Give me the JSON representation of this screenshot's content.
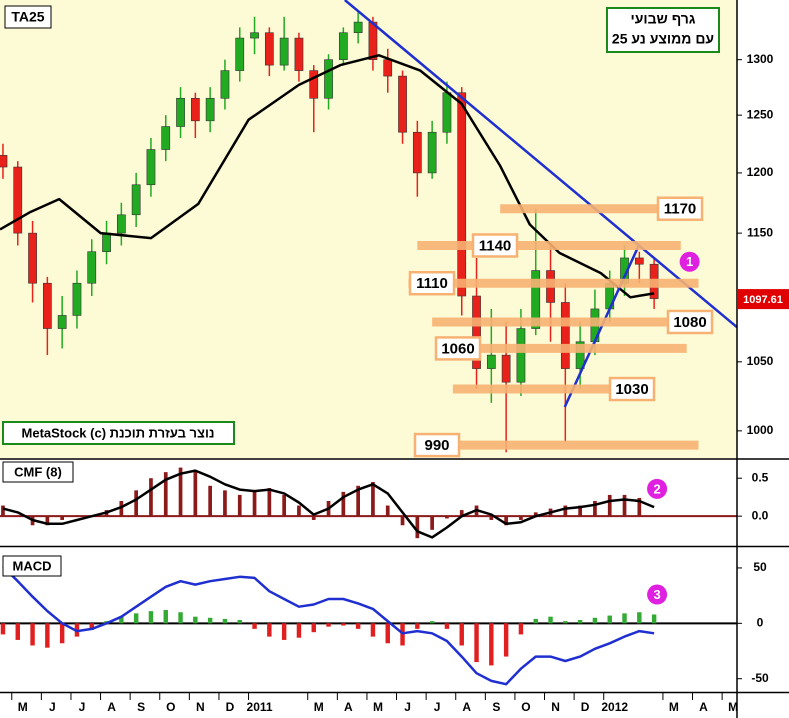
{
  "chart_data": [
    {
      "type": "candlestick",
      "title": "TA25",
      "note": [
        "גרף שבועי",
        "עם ממוצע נע 25"
      ],
      "credit": "MetaStock (c) נוצר בעזרת תוכנת",
      "x": [
        -0.5,
        0,
        0.5,
        1,
        1.5,
        2,
        2.5,
        3,
        3.5,
        4,
        4.5,
        5,
        5.5,
        6,
        6.5,
        7,
        7.5,
        8,
        8.5,
        9,
        9.5,
        10,
        10.5,
        11,
        11.5,
        12,
        12.5,
        13,
        13.5,
        14,
        14.5,
        15,
        15.5,
        16,
        16.5,
        17,
        17.5,
        18,
        18.5,
        19,
        19.5,
        20,
        20.5,
        21,
        21.5
      ],
      "open": [
        1215,
        1205,
        1150,
        1110,
        1075,
        1085,
        1110,
        1135,
        1150,
        1165,
        1190,
        1220,
        1240,
        1265,
        1245,
        1265,
        1290,
        1320,
        1325,
        1295,
        1320,
        1290,
        1265,
        1300,
        1325,
        1335,
        1300,
        1285,
        1235,
        1200,
        1235,
        1270,
        1100,
        1045,
        1055,
        1035,
        1075,
        1120,
        1095,
        1045,
        1065,
        1090,
        1110,
        1130,
        1125
      ],
      "high": [
        1225,
        1210,
        1160,
        1115,
        1100,
        1120,
        1145,
        1160,
        1175,
        1200,
        1230,
        1250,
        1275,
        1270,
        1275,
        1300,
        1330,
        1340,
        1330,
        1340,
        1325,
        1295,
        1305,
        1330,
        1345,
        1340,
        1310,
        1290,
        1245,
        1245,
        1280,
        1275,
        1130,
        1090,
        1080,
        1090,
        1170,
        1140,
        1110,
        1080,
        1105,
        1120,
        1140,
        1135,
        1130
      ],
      "low": [
        1195,
        1140,
        1095,
        1055,
        1060,
        1075,
        1100,
        1125,
        1140,
        1155,
        1180,
        1210,
        1230,
        1230,
        1235,
        1255,
        1280,
        1305,
        1285,
        1290,
        1280,
        1235,
        1255,
        1295,
        1315,
        1290,
        1270,
        1225,
        1180,
        1195,
        1225,
        1085,
        1030,
        1020,
        985,
        1025,
        1070,
        1065,
        992,
        1030,
        1055,
        1080,
        1100,
        1110,
        1090
      ],
      "close": [
        1205,
        1150,
        1110,
        1075,
        1085,
        1110,
        1135,
        1150,
        1165,
        1190,
        1220,
        1240,
        1265,
        1245,
        1265,
        1290,
        1320,
        1325,
        1295,
        1320,
        1290,
        1265,
        1300,
        1325,
        1335,
        1300,
        1285,
        1235,
        1200,
        1235,
        1270,
        1100,
        1045,
        1055,
        1035,
        1075,
        1120,
        1095,
        1045,
        1065,
        1090,
        1110,
        1130,
        1125,
        1098
      ],
      "up_color": "#22aa22",
      "down_color": "#e8221a",
      "moving_average": {
        "x": [
          -0.6,
          0.4,
          1.4,
          2.8,
          4.5,
          6.1,
          7.8,
          9.5,
          10.9,
          12.2,
          13.6,
          15,
          16.3,
          17.3,
          18.3,
          19.7,
          20.7,
          21.5
        ],
        "values": [
          1153,
          1167,
          1178,
          1150,
          1146,
          1174,
          1246,
          1277,
          1295,
          1304,
          1290,
          1260,
          1206,
          1157,
          1134,
          1118,
          1099,
          1102
        ],
        "color": "#000000"
      },
      "trendlines": [
        {
          "from": [
            11.05,
            1356
          ],
          "to": [
            24.3,
            1076
          ]
        },
        {
          "from": [
            18.48,
            1017
          ],
          "to": [
            21.0,
            1141
          ]
        }
      ],
      "trend_color": "#1f2fd0",
      "levels": [
        {
          "value": 1170,
          "from": 16.3,
          "to": 23.0
        },
        {
          "value": 1140,
          "from": 13.5,
          "to": 22.4
        },
        {
          "value": 1110,
          "from": 13.2,
          "to": 23.0
        },
        {
          "value": 1080,
          "from": 14.0,
          "to": 23.0
        },
        {
          "value": 1060,
          "from": 14.8,
          "to": 22.6
        },
        {
          "value": 1030,
          "from": 14.7,
          "to": 21.4
        },
        {
          "value": 990,
          "from": 13.5,
          "to": 23.0
        }
      ],
      "level_color": "#f7b273",
      "last_value": 1097.61,
      "last_value_color": "#e00000",
      "markers": [
        {
          "text": "1",
          "x": 22.7,
          "y": 1127
        }
      ],
      "marker_color": "#e020e0",
      "xlim": [
        -0.6,
        24.3
      ],
      "ylim": [
        981,
        1356
      ],
      "log_y": true,
      "yticks": [
        1000,
        1050,
        1150,
        1200,
        1250,
        1300
      ]
    },
    {
      "type": "bar",
      "title": "CMF (8)",
      "x": [
        -0.5,
        0,
        0.5,
        1,
        1.5,
        2,
        2.5,
        3,
        3.5,
        4,
        4.5,
        5,
        5.5,
        6,
        6.5,
        7,
        7.5,
        8,
        8.5,
        9,
        9.5,
        10,
        10.5,
        11,
        11.5,
        12,
        12.5,
        13,
        13.5,
        14,
        14.5,
        15,
        15.5,
        16,
        16.5,
        17,
        17.5,
        18,
        18.5,
        19,
        19.5,
        20,
        20.5,
        21,
        21.5
      ],
      "values": [
        0.14,
        0.01,
        -0.12,
        -0.12,
        -0.05,
        0.01,
        0.01,
        0.08,
        0.2,
        0.34,
        0.5,
        0.58,
        0.64,
        0.6,
        0.4,
        0.34,
        0.28,
        0.34,
        0.37,
        0.28,
        0.14,
        -0.05,
        0.2,
        0.32,
        0.4,
        0.45,
        0.14,
        -0.12,
        -0.29,
        -0.18,
        -0.03,
        0.08,
        0.14,
        -0.05,
        -0.12,
        -0.05,
        0.05,
        0.1,
        0.14,
        0.14,
        0.2,
        0.28,
        0.28,
        0.24,
        0.01
      ],
      "color": "#8b1a1a",
      "line": {
        "values": [
          0.1,
          0.05,
          -0.05,
          -0.1,
          -0.1,
          -0.05,
          0,
          0.05,
          0.12,
          0.22,
          0.35,
          0.48,
          0.56,
          0.6,
          0.52,
          0.42,
          0.35,
          0.33,
          0.35,
          0.3,
          0.18,
          0.02,
          0.1,
          0.25,
          0.35,
          0.42,
          0.3,
          0.05,
          -0.2,
          -0.28,
          -0.15,
          0,
          0.08,
          0.02,
          -0.1,
          -0.08,
          0,
          0.05,
          0.1,
          0.12,
          0.15,
          0.2,
          0.22,
          0.2,
          0.12
        ],
        "color": "#000000"
      },
      "markers": [
        {
          "text": "2",
          "x": 21.6,
          "y": 0.36
        }
      ],
      "marker_color": "#e020e0",
      "xlim": [
        -0.6,
        24.3
      ],
      "ylim": [
        -0.38,
        0.74
      ],
      "yticks": [
        0.5,
        {
          "value": 0,
          "label": "0.0"
        }
      ],
      "zero_color": "#8b1a1a"
    },
    {
      "type": "bar",
      "title": "MACD",
      "x": [
        -0.5,
        0,
        0.5,
        1,
        1.5,
        2,
        2.5,
        3,
        3.5,
        4,
        4.5,
        5,
        5.5,
        6,
        6.5,
        7,
        7.5,
        8,
        8.5,
        9,
        9.5,
        10,
        10.5,
        11,
        11.5,
        12,
        12.5,
        13,
        13.5,
        14,
        14.5,
        15,
        15.5,
        16,
        16.5,
        17,
        17.5,
        18,
        18.5,
        19,
        19.5,
        20,
        20.5,
        21,
        21.5
      ],
      "values": [
        -10,
        -15,
        -20,
        -22,
        -18,
        -12,
        -6,
        2,
        6,
        9,
        11,
        12,
        10,
        6,
        5,
        4,
        3,
        -5,
        -12,
        -15,
        -13,
        -8,
        -3,
        -2,
        -5,
        -12,
        -18,
        -20,
        -5,
        2,
        -5,
        -20,
        -35,
        -38,
        -30,
        -10,
        4,
        6,
        2,
        3,
        5,
        7,
        9,
        10,
        8
      ],
      "pos_color": "#33aa33",
      "neg_color": "#e02020",
      "line": {
        "values": [
          51,
          38,
          24,
          11,
          0,
          -7,
          -5,
          0,
          6,
          15,
          24,
          33,
          38,
          35,
          38,
          40,
          42,
          41,
          29,
          22,
          15,
          17,
          22,
          22,
          18,
          13,
          2,
          -9,
          -7,
          -9,
          -16,
          -30,
          -45,
          -52,
          -55,
          -41,
          -30,
          -30,
          -34,
          -30,
          -23,
          -18,
          -12,
          -7,
          -9
        ],
        "color": "#1f2fd0"
      },
      "markers": [
        {
          "text": "3",
          "x": 21.6,
          "y": 26
        }
      ],
      "marker_color": "#e020e0",
      "xlim": [
        -0.6,
        24.3
      ],
      "ylim": [
        -62,
        68
      ],
      "yticks": [
        50,
        0,
        -50
      ],
      "zero_color": "#000000",
      "xticks": [
        {
          "value": 0,
          "label": "M"
        },
        {
          "value": 1,
          "label": "J"
        },
        {
          "value": 2,
          "label": "J"
        },
        {
          "value": 3,
          "label": "A"
        },
        {
          "value": 4,
          "label": "S"
        },
        {
          "value": 5,
          "label": "O"
        },
        {
          "value": 6,
          "label": "N"
        },
        {
          "value": 7,
          "label": "D"
        },
        {
          "value": 8,
          "label": "2011"
        },
        {
          "value": 10,
          "label": "M"
        },
        {
          "value": 11,
          "label": "A"
        },
        {
          "value": 12,
          "label": "M"
        },
        {
          "value": 13,
          "label": "J"
        },
        {
          "value": 14,
          "label": "J"
        },
        {
          "value": 15,
          "label": "A"
        },
        {
          "value": 16,
          "label": "S"
        },
        {
          "value": 17,
          "label": "O"
        },
        {
          "value": 18,
          "label": "N"
        },
        {
          "value": 19,
          "label": "D"
        },
        {
          "value": 20,
          "label": "2012"
        },
        {
          "value": 22,
          "label": "M"
        },
        {
          "value": 23,
          "label": "A"
        },
        {
          "value": 24,
          "label": "M"
        }
      ]
    }
  ]
}
